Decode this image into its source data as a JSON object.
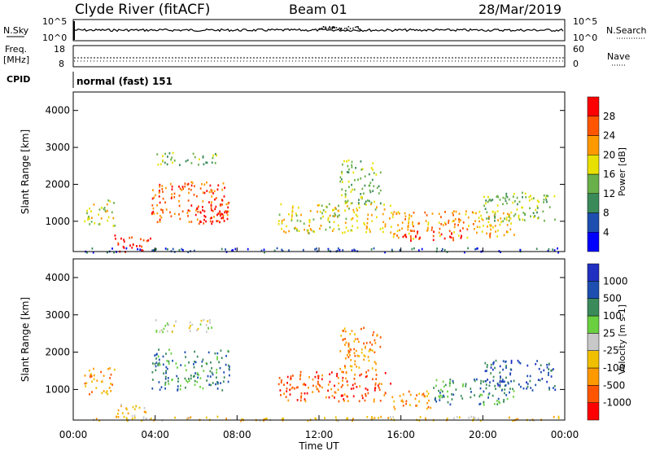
{
  "header": {
    "station": "Clyde River (fitACF)",
    "beam": "Beam 01",
    "date": "28/Mar/2019"
  },
  "top_panel": {
    "nsky_label": "N.Sky",
    "nsearch_label": "N.Search",
    "left_top_tick": "10^5",
    "left_bottom_tick": "10^0",
    "right_top_tick": "10^5",
    "right_bottom_tick": "10^0"
  },
  "freq_panel": {
    "freq_label": "Freq.",
    "freq_unit": "[MHz]",
    "nave_label": "Nave",
    "left_ticks": [
      "18",
      "8"
    ],
    "right_ticks": [
      "60",
      "0"
    ]
  },
  "cpid": {
    "label": "CPID",
    "mode": "normal (fast) 151"
  },
  "x_axis": {
    "label": "Time UT",
    "ticks": [
      "00:00",
      "04:00",
      "08:00",
      "12:00",
      "16:00",
      "20:00",
      "00:00"
    ]
  },
  "colors": {
    "power_scale": [
      "#0000ff",
      "#1e4fb0",
      "#3a8a5a",
      "#6ab04a",
      "#e8e000",
      "#ff9900",
      "#ff5500",
      "#ff0000"
    ],
    "velocity_scale": [
      "#ff0000",
      "#ff5500",
      "#ff9900",
      "#f0c000",
      "#c8c8c8",
      "#6ad040",
      "#3a8a5a",
      "#1e4fb0",
      "#2030c0"
    ]
  },
  "chart_data": [
    {
      "type": "heatmap",
      "name": "power",
      "ylabel": "Slant Range [km]",
      "yticks": [
        "1000",
        "2000",
        "3000",
        "4000"
      ],
      "ylim": [
        180,
        4500
      ],
      "xlim": [
        0,
        24
      ],
      "colorbar_label": "Power [dB]",
      "colorbar_ticks": [
        "4",
        "8",
        "12",
        "16",
        "20",
        "24",
        "28"
      ],
      "scatter_regions": [
        {
          "t0": 2.0,
          "t1": 3.8,
          "r0": 200,
          "r1": 650,
          "level": 7
        },
        {
          "t0": 0.5,
          "t1": 2.0,
          "r0": 900,
          "r1": 1600,
          "level": 4
        },
        {
          "t0": 3.8,
          "t1": 7.6,
          "r0": 1000,
          "r1": 2100,
          "level": 6
        },
        {
          "t0": 6.0,
          "t1": 7.5,
          "r0": 900,
          "r1": 1500,
          "level": 7
        },
        {
          "t0": 4.0,
          "t1": 7.0,
          "r0": 2550,
          "r1": 2900,
          "level": 3
        },
        {
          "t0": 10.0,
          "t1": 15.5,
          "r0": 700,
          "r1": 1500,
          "level": 4
        },
        {
          "t0": 13.0,
          "t1": 15.0,
          "r0": 1500,
          "r1": 2700,
          "level": 3
        },
        {
          "t0": 15.5,
          "t1": 21.5,
          "r0": 550,
          "r1": 1300,
          "level": 5
        },
        {
          "t0": 16.0,
          "t1": 19.0,
          "r0": 500,
          "r1": 800,
          "level": 7
        },
        {
          "t0": 20.0,
          "t1": 23.6,
          "r0": 1000,
          "r1": 1800,
          "level": 3
        },
        {
          "t0": 0.0,
          "t1": 24.0,
          "r0": 180,
          "r1": 300,
          "level": 1
        }
      ]
    },
    {
      "type": "heatmap",
      "name": "velocity",
      "ylabel": "Slant Range [km]",
      "yticks": [
        "1000",
        "2000",
        "3000",
        "4000"
      ],
      "ylim": [
        180,
        4500
      ],
      "xlim": [
        0,
        24
      ],
      "colorbar_label": "Velocity [m s-1]",
      "colorbar_ticks": [
        "1000",
        "500",
        "100",
        "25",
        "-25",
        "-100",
        "-500",
        "-1000"
      ],
      "scatter_regions": [
        {
          "t0": 2.0,
          "t1": 3.8,
          "r0": 200,
          "r1": 650,
          "level": 3
        },
        {
          "t0": 0.5,
          "t1": 2.0,
          "r0": 900,
          "r1": 1600,
          "level": 2
        },
        {
          "t0": 3.8,
          "t1": 7.6,
          "r0": 1000,
          "r1": 2100,
          "level": 6
        },
        {
          "t0": 4.0,
          "t1": 7.0,
          "r0": 2550,
          "r1": 2900,
          "level": 4
        },
        {
          "t0": 10.0,
          "t1": 15.5,
          "r0": 700,
          "r1": 1500,
          "level": 1
        },
        {
          "t0": 13.0,
          "t1": 15.0,
          "r0": 1500,
          "r1": 2700,
          "level": 2
        },
        {
          "t0": 15.5,
          "t1": 17.5,
          "r0": 500,
          "r1": 1000,
          "level": 2
        },
        {
          "t0": 17.5,
          "t1": 21.5,
          "r0": 600,
          "r1": 1300,
          "level": 6
        },
        {
          "t0": 20.0,
          "t1": 23.6,
          "r0": 1000,
          "r1": 1800,
          "level": 7
        },
        {
          "t0": 0.0,
          "t1": 24.0,
          "r0": 180,
          "r1": 300,
          "level": 3
        }
      ]
    }
  ]
}
